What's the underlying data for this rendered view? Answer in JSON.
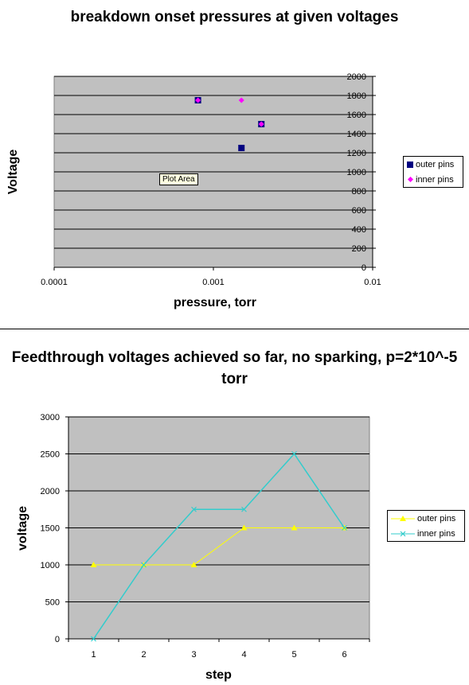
{
  "chart_data": [
    {
      "type": "scatter",
      "title": "breakdown onset pressures at given voltages",
      "xlabel": "pressure, torr",
      "ylabel": "Voltage",
      "x_scale": "log",
      "xlim": [
        0.0001,
        0.01
      ],
      "ylim": [
        0,
        2000
      ],
      "x_ticks": [
        "0.0001",
        "0.001",
        "0.01"
      ],
      "y_ticks": [
        "0",
        "200",
        "400",
        "600",
        "800",
        "1000",
        "1200",
        "1400",
        "1600",
        "1800",
        "2000"
      ],
      "grid": true,
      "legend": "right",
      "tooltip": "Plot Area",
      "series": [
        {
          "name": "outer pins",
          "marker": "square",
          "color": "#000080",
          "points": [
            [
              0.0008,
              1750
            ],
            [
              0.0015,
              1250
            ],
            [
              0.002,
              1500
            ]
          ]
        },
        {
          "name": "inner pins",
          "marker": "diamond",
          "color": "#ff00ff",
          "points": [
            [
              0.0008,
              1750
            ],
            [
              0.0015,
              1750
            ],
            [
              0.002,
              1500
            ]
          ]
        }
      ]
    },
    {
      "type": "line",
      "title": "Feedthrough voltages achieved so far, no sparking, p=2*10^-5 torr",
      "xlabel": "step",
      "ylabel": "voltage",
      "categories": [
        "1",
        "2",
        "3",
        "4",
        "5",
        "6"
      ],
      "ylim": [
        0,
        3000
      ],
      "y_ticks": [
        "0",
        "500",
        "1000",
        "1500",
        "2000",
        "2500",
        "3000"
      ],
      "grid": true,
      "legend": "right",
      "series": [
        {
          "name": "outer pins",
          "marker": "triangle",
          "color": "#ffff00",
          "values": [
            1000,
            1000,
            1000,
            1500,
            1500,
            1500
          ]
        },
        {
          "name": "inner pins",
          "marker": "x",
          "color": "#33cccc",
          "values": [
            0,
            1000,
            1750,
            1750,
            2500,
            1500
          ]
        }
      ]
    }
  ]
}
